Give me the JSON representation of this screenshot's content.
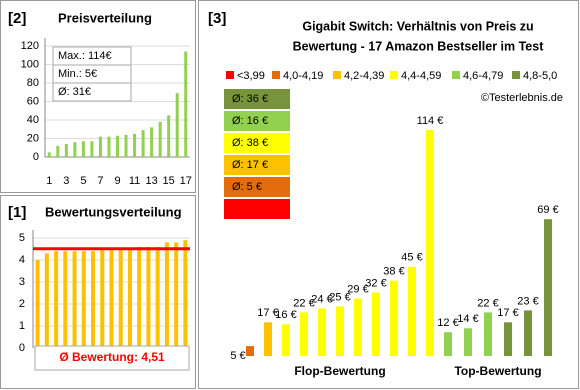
{
  "chart_data": [
    {
      "type": "bar",
      "label": "[2]",
      "title": "Preisverteilung",
      "x": [
        1,
        2,
        3,
        4,
        5,
        6,
        7,
        8,
        9,
        10,
        11,
        12,
        13,
        14,
        15,
        16,
        17
      ],
      "values": [
        5,
        12,
        14,
        16,
        17,
        17,
        22,
        22,
        23,
        24,
        25,
        29,
        32,
        38,
        45,
        69,
        114
      ],
      "color": "#92d050",
      "ylim": [
        0,
        120
      ],
      "yticks": [
        0,
        20,
        40,
        60,
        80,
        100,
        120
      ],
      "xticks": [
        1,
        3,
        5,
        7,
        9,
        11,
        13,
        15,
        17
      ],
      "grid": true,
      "annotations": [
        "Max.: 114€",
        "Min.: 5€",
        "Ø: 31€"
      ]
    },
    {
      "type": "bar",
      "label": "[1]",
      "title": "Bewertungsverteilung",
      "values": [
        4.0,
        4.3,
        4.4,
        4.4,
        4.4,
        4.4,
        4.4,
        4.5,
        4.5,
        4.5,
        4.5,
        4.6,
        4.6,
        4.6,
        4.8,
        4.8,
        4.9
      ],
      "color": "#ffc000",
      "ylim": [
        0,
        5
      ],
      "yticks": [
        0,
        1,
        2,
        3,
        4,
        5
      ],
      "grid": true,
      "mean": 4.51,
      "mean_color": "#ff0000",
      "mean_label": "Ø Bewertung: 4,51"
    },
    {
      "type": "bar",
      "label": "[3]",
      "title": [
        "Gigabit Switch: Verhältnis von Preis zu",
        "Bewertung - 17 Amazon Bestseller im Test"
      ],
      "legend": [
        {
          "name": "<3,99",
          "color": "#ff0000"
        },
        {
          "name": "4,0-4,19",
          "color": "#e46c0a"
        },
        {
          "name": "4,2-4,39",
          "color": "#ffc000"
        },
        {
          "name": "4,4-4,59",
          "color": "#ffff00"
        },
        {
          "name": "4,6-4,79",
          "color": "#92d050"
        },
        {
          "name": "4,8-5,0",
          "color": "#77933c"
        }
      ],
      "credit": "©Testerlebnis.de",
      "averages": [
        {
          "label": "Ø: 36 €",
          "color": "#77933c"
        },
        {
          "label": "Ø: 16 €",
          "color": "#92d050"
        },
        {
          "label": "Ø: 38 €",
          "color": "#ffff00"
        },
        {
          "label": "Ø: 17 €",
          "color": "#ffc000"
        },
        {
          "label": "Ø: 5 €",
          "color": "#e46c0a"
        },
        {
          "color": "#ff0000"
        }
      ],
      "groups": [
        {
          "name": "Flop-Bewertung",
          "values": [
            5,
            17,
            16,
            22,
            24,
            25,
            29,
            32,
            38,
            45,
            114
          ],
          "value_labels": [
            "5 €",
            "17 €",
            "16 €",
            "22 €",
            "24 €",
            "25 €",
            "29 €",
            "32 €",
            "38 €",
            "45 €",
            "114 €"
          ],
          "colors": [
            "#e46c0a",
            "#ffc000",
            "#ffff00",
            "#ffff00",
            "#ffff00",
            "#ffff00",
            "#ffff00",
            "#ffff00",
            "#ffff00",
            "#ffff00",
            "#ffff00"
          ]
        },
        {
          "name": "Top-Bewertung",
          "values": [
            12,
            14,
            22,
            17,
            23,
            69
          ],
          "value_labels": [
            "12 €",
            "14 €",
            "22 €",
            "17 €",
            "23 €",
            "69 €"
          ],
          "colors": [
            "#92d050",
            "#92d050",
            "#92d050",
            "#77933c",
            "#77933c",
            "#77933c"
          ]
        }
      ]
    }
  ]
}
